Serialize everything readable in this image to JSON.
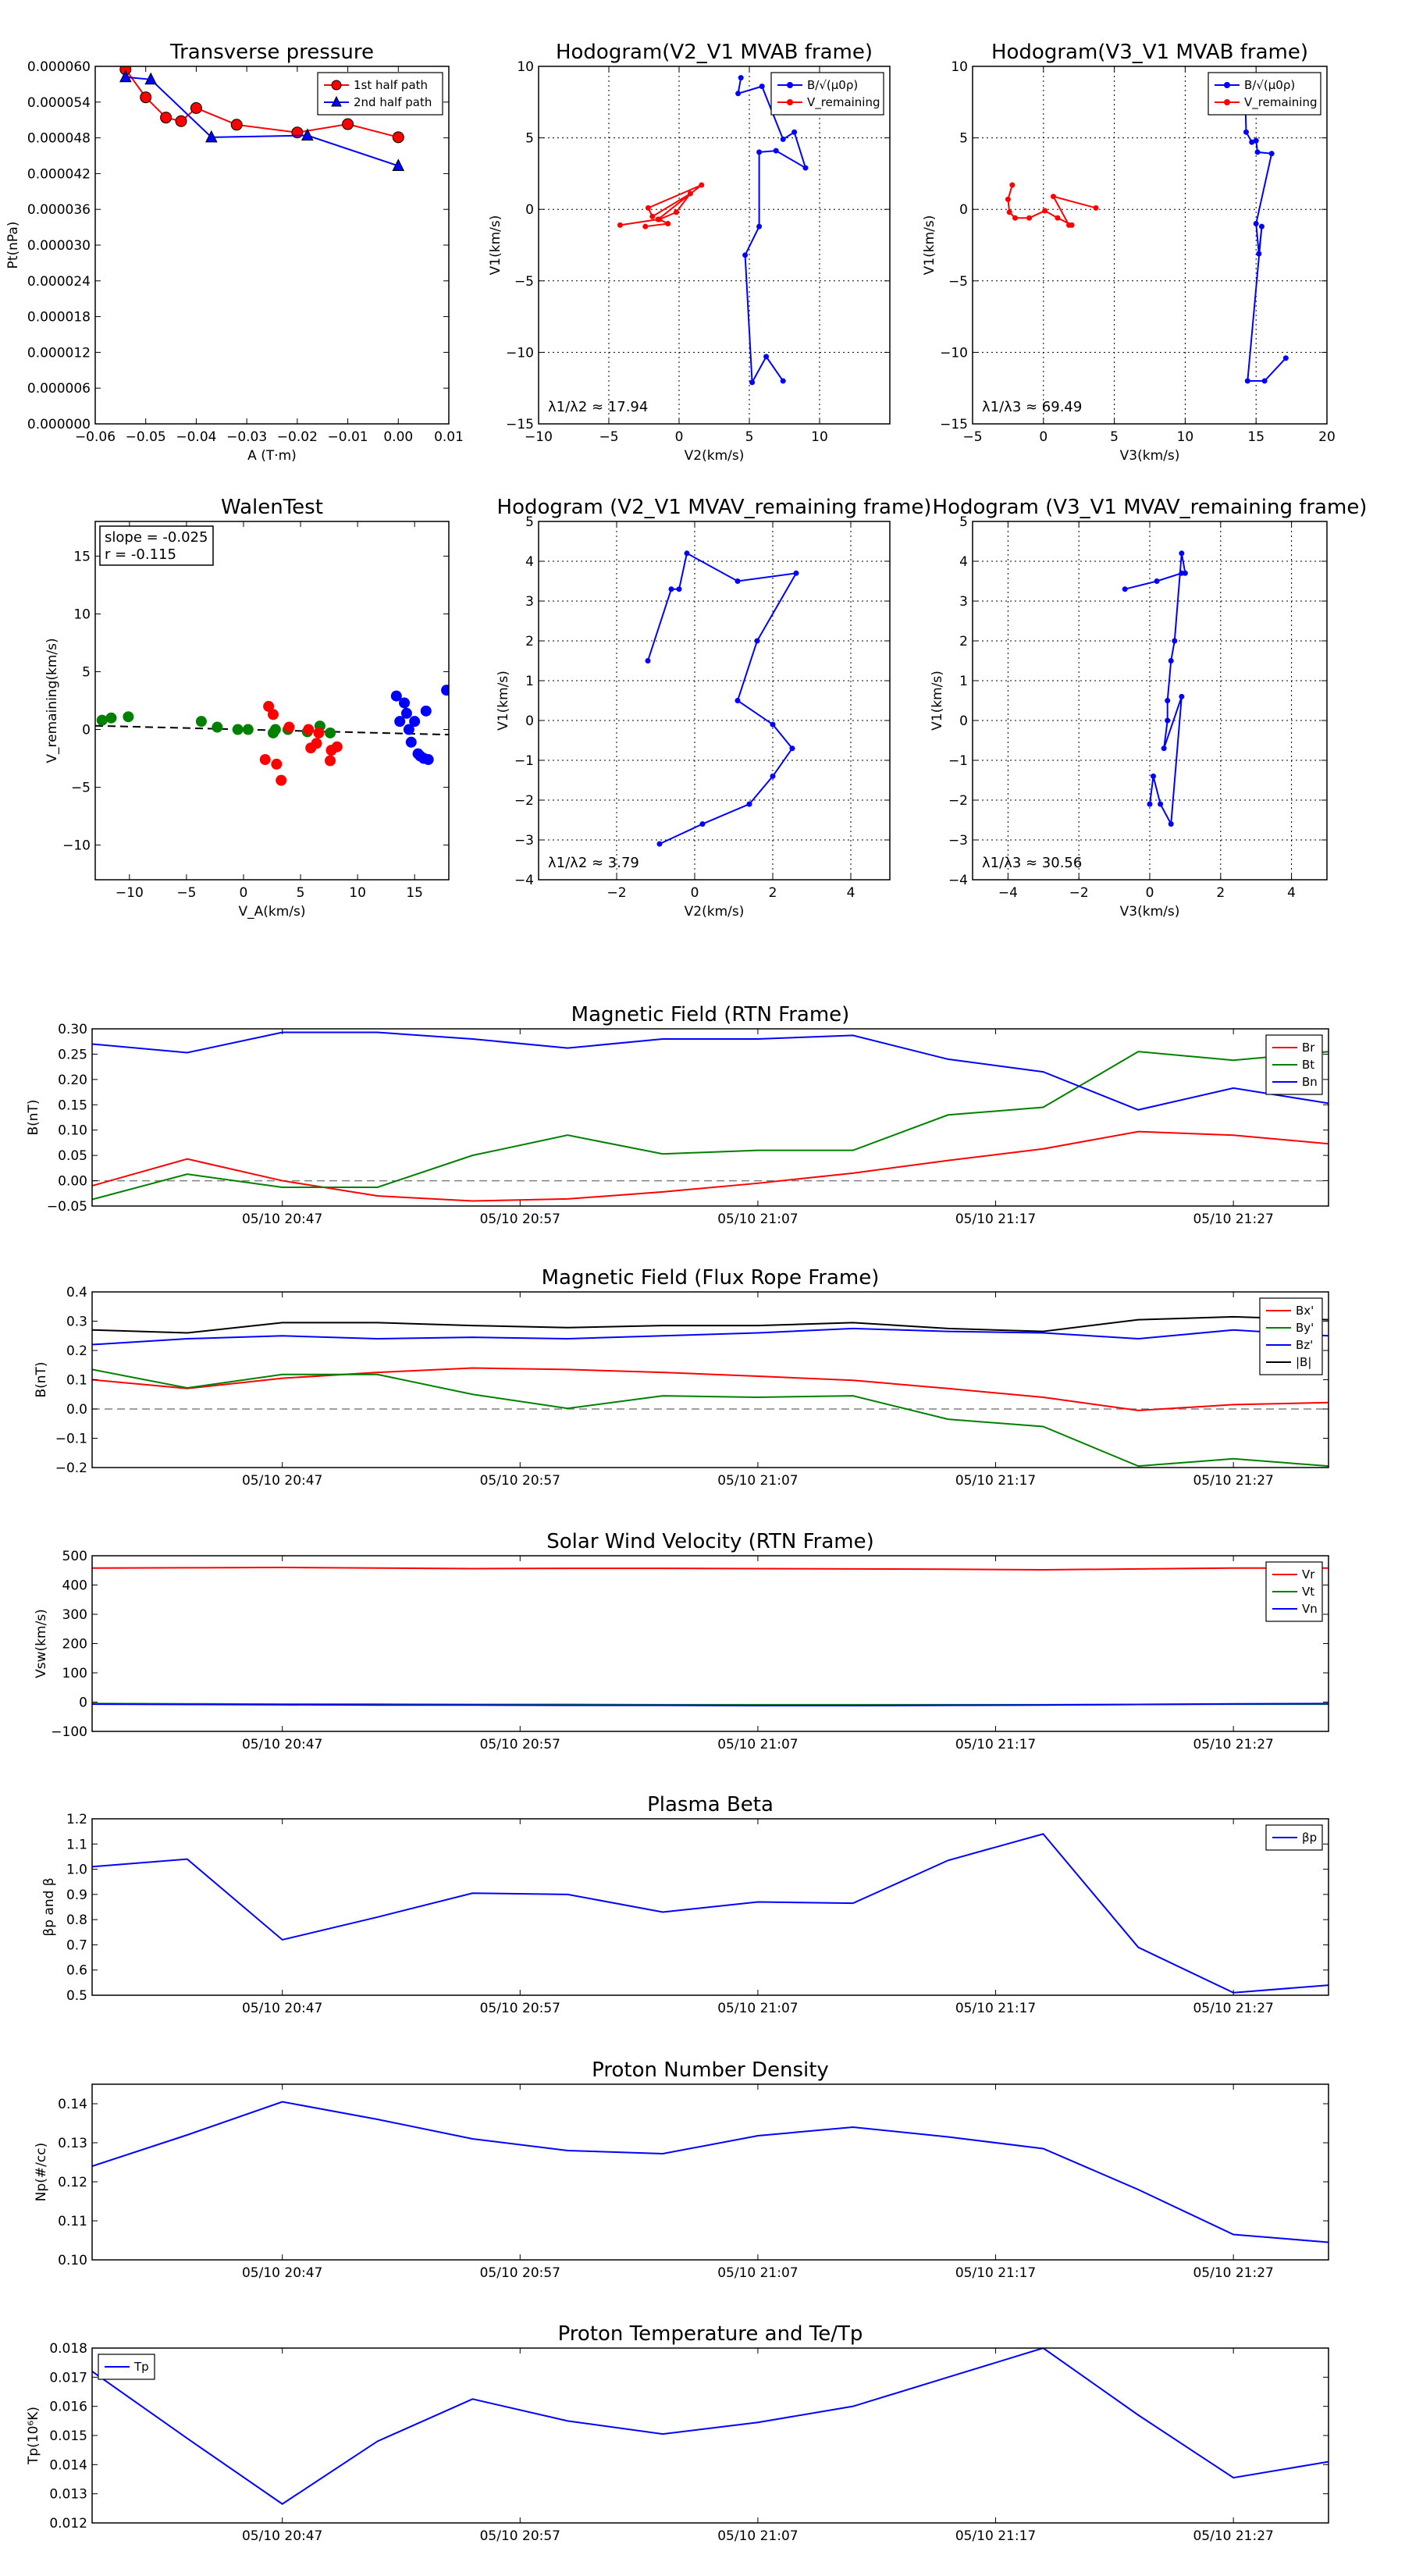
{
  "colors": {
    "red": "#ff0000",
    "green": "#008000",
    "blue": "#0000ff",
    "black": "#000000",
    "gray": "#808080"
  },
  "chart_data": [
    {
      "type": "line",
      "title": "Transverse pressure",
      "xlabel": "A (T·m)",
      "ylabel": "Pt(nPa)",
      "xlim": [
        -0.06,
        0.01
      ],
      "ylim": [
        0,
        6e-05
      ],
      "xticks": [
        "−0.06",
        "−0.05",
        "−0.04",
        "−0.03",
        "−0.02",
        "−0.01",
        "0.00",
        "0.01"
      ],
      "yticks": [
        "0.000000",
        "0.000006",
        "0.000012",
        "0.000018",
        "0.000024",
        "0.000030",
        "0.000036",
        "0.000042",
        "0.000048",
        "0.000054",
        "0.000060"
      ],
      "grid": false,
      "legend": "top-right",
      "series": [
        {
          "name": "1st half path",
          "color": "red",
          "marker": "circle",
          "x": [
            -0.054,
            -0.05,
            -0.046,
            -0.043,
            -0.04,
            -0.032,
            -0.02,
            -0.01,
            0.0
          ],
          "y": [
            5.95e-05,
            5.48e-05,
            5.14e-05,
            5.08e-05,
            5.3e-05,
            5.02e-05,
            4.89e-05,
            5.03e-05,
            4.81e-05
          ]
        },
        {
          "name": "2nd half path",
          "color": "blue",
          "marker": "triangle",
          "x": [
            -0.054,
            -0.049,
            -0.037,
            -0.018,
            0.0
          ],
          "y": [
            5.82e-05,
            5.78e-05,
            4.81e-05,
            4.84e-05,
            4.33e-05
          ]
        }
      ]
    },
    {
      "type": "line",
      "title": "Hodogram(V2_V1 MVAB frame)",
      "xlabel": "V2(km/s)",
      "ylabel": "V1(km/s)",
      "xlim": [
        -10,
        15
      ],
      "ylim": [
        -15,
        10
      ],
      "xticks": [
        "−10",
        "−5",
        "0",
        "5",
        "10"
      ],
      "yticks": [
        "−15",
        "−10",
        "−5",
        "0",
        "5",
        "10"
      ],
      "grid": true,
      "legend": "top-right",
      "annotation": "λ1/λ2 ≈ 17.94",
      "series": [
        {
          "name": "B/√(μ0ρ)",
          "color": "blue",
          "marker": "dot",
          "x": [
            4.4,
            4.2,
            5.9,
            7.4,
            8.2,
            9.0,
            6.9,
            5.7,
            5.7,
            4.7,
            5.2,
            6.2,
            7.4
          ],
          "y": [
            9.2,
            8.1,
            8.6,
            4.9,
            5.4,
            2.9,
            4.1,
            4.0,
            -1.2,
            -3.2,
            -12.1,
            -10.3,
            -12.0
          ]
        },
        {
          "name": "V_remaining",
          "color": "red",
          "marker": "dot",
          "x": [
            -4.2,
            -1.5,
            1.6,
            -2.2,
            -1.9,
            0.8,
            -0.2,
            -1.4,
            -0.8,
            -2.4
          ],
          "y": [
            -1.1,
            -0.7,
            1.7,
            0.1,
            -0.5,
            1.1,
            -0.2,
            -0.7,
            -1.0,
            -1.2
          ]
        }
      ]
    },
    {
      "type": "line",
      "title": "Hodogram(V3_V1 MVAB frame)",
      "xlabel": "V3(km/s)",
      "ylabel": "V1(km/s)",
      "xlim": [
        -5,
        20
      ],
      "ylim": [
        -15,
        10
      ],
      "xticks": [
        "−5",
        "0",
        "5",
        "10",
        "15",
        "20"
      ],
      "yticks": [
        "−15",
        "−10",
        "−5",
        "0",
        "5",
        "10"
      ],
      "grid": true,
      "legend": "top-right",
      "annotation": "λ1/λ3 ≈ 69.49",
      "series": [
        {
          "name": "B/√(μ0ρ)",
          "color": "blue",
          "marker": "dot",
          "x": [
            14.2,
            14.3,
            14.7,
            15.0,
            15.1,
            16.1,
            15.0,
            15.2,
            15.4,
            14.4,
            15.6,
            17.1
          ],
          "y": [
            9.0,
            5.4,
            4.7,
            4.8,
            4.0,
            3.9,
            -1.0,
            -3.1,
            -1.2,
            -12.0,
            -12.0,
            -10.4
          ]
        },
        {
          "name": "V_remaining",
          "color": "red",
          "marker": "dot",
          "x": [
            -2.2,
            -2.5,
            -2.4,
            -2.0,
            -1.0,
            0.1,
            1.0,
            2.0,
            1.8,
            0.7,
            3.7
          ],
          "y": [
            1.7,
            0.7,
            -0.2,
            -0.6,
            -0.6,
            -0.1,
            -0.6,
            -1.1,
            -1.1,
            0.9,
            0.1
          ]
        }
      ]
    },
    {
      "type": "scatter",
      "title": "WalenTest",
      "xlabel": "V_A(km/s)",
      "ylabel": "V_remaining(km/s)",
      "xlim": [
        -13,
        18
      ],
      "ylim": [
        -13,
        18
      ],
      "xticks": [
        "−10",
        "−5",
        "0",
        "5",
        "10",
        "15"
      ],
      "yticks": [
        "−10",
        "−5",
        "0",
        "5",
        "10",
        "15"
      ],
      "grid": false,
      "annotation": [
        "slope = -0.025",
        "r = -0.115"
      ],
      "fit_line": {
        "slope": -0.025,
        "intercept": 0.0
      },
      "series": [
        {
          "color": "green",
          "x": [
            -12.4,
            -11.6,
            -10.1,
            -3.7,
            -2.3,
            -0.5,
            0.4,
            2.6,
            2.8,
            3.9,
            5.6,
            6.7,
            7.6
          ],
          "y": [
            0.8,
            1.0,
            1.1,
            0.7,
            0.2,
            0.0,
            0.0,
            -0.3,
            0.0,
            0.0,
            -0.2,
            0.3,
            -0.3
          ]
        },
        {
          "color": "red",
          "x": [
            1.9,
            2.2,
            2.6,
            2.9,
            3.3,
            4.0,
            5.7,
            5.9,
            6.4,
            6.6,
            7.6,
            7.7,
            8.2
          ],
          "y": [
            -2.6,
            2.0,
            1.3,
            -3.0,
            -4.4,
            0.2,
            0.0,
            -1.6,
            -1.2,
            -0.3,
            -2.7,
            -1.8,
            -1.5
          ]
        },
        {
          "color": "blue",
          "x": [
            13.4,
            13.7,
            14.1,
            14.3,
            14.5,
            14.7,
            15.0,
            15.3,
            15.5,
            15.8,
            16.0,
            16.2,
            17.8
          ],
          "y": [
            2.9,
            0.7,
            2.3,
            1.4,
            0.0,
            -1.1,
            0.7,
            -2.1,
            -2.3,
            -2.5,
            1.6,
            -2.6,
            3.4
          ]
        }
      ]
    },
    {
      "type": "line",
      "title": "Hodogram (V2_V1 MVAV_remaining frame)",
      "xlabel": "V2(km/s)",
      "ylabel": "V1(km/s)",
      "xlim": [
        -4,
        5
      ],
      "ylim": [
        -4,
        5
      ],
      "xticks": [
        "−2",
        "0",
        "2",
        "4"
      ],
      "yticks": [
        "−4",
        "−3",
        "−2",
        "−1",
        "0",
        "1",
        "2",
        "3",
        "4",
        "5"
      ],
      "grid": true,
      "annotation": "λ1/λ2 ≈ 3.79",
      "series": [
        {
          "color": "blue",
          "marker": "dot",
          "x": [
            -1.2,
            -0.6,
            -0.4,
            -0.2,
            1.1,
            2.6,
            1.6,
            1.1,
            2.0,
            2.5,
            2.0,
            1.4,
            0.2,
            -0.9
          ],
          "y": [
            1.5,
            3.3,
            3.3,
            4.2,
            3.5,
            3.7,
            2.0,
            0.5,
            -0.1,
            -0.7,
            -1.4,
            -2.1,
            -2.6,
            -3.1
          ]
        }
      ]
    },
    {
      "type": "line",
      "title": "Hodogram (V3_V1 MVAV_remaining frame)",
      "xlabel": "V3(km/s)",
      "ylabel": "V1(km/s)",
      "xlim": [
        -5,
        5
      ],
      "ylim": [
        -4,
        5
      ],
      "xticks": [
        "−4",
        "−2",
        "0",
        "2",
        "4"
      ],
      "yticks": [
        "−4",
        "−3",
        "−2",
        "−1",
        "0",
        "1",
        "2",
        "3",
        "4",
        "5"
      ],
      "grid": true,
      "annotation": "λ1/λ3 ≈ 30.56",
      "series": [
        {
          "color": "blue",
          "marker": "dot",
          "x": [
            -0.7,
            0.2,
            0.9,
            1.0,
            0.9,
            0.7,
            0.6,
            0.5,
            0.5,
            0.4,
            0.9,
            0.6,
            0.3,
            0.1,
            0.0
          ],
          "y": [
            3.3,
            3.5,
            3.7,
            3.7,
            4.2,
            2.0,
            1.5,
            0.5,
            0.0,
            -0.7,
            0.6,
            -2.6,
            -2.1,
            -1.4,
            -2.1
          ]
        }
      ]
    },
    {
      "type": "line",
      "title": "Magnetic Field (RTN Frame)",
      "xlabel": "",
      "ylabel": "B(nT)",
      "xlim": [
        0,
        52
      ],
      "ylim": [
        -0.05,
        0.3
      ],
      "xticks": [
        "05/10 20:47",
        "05/10 20:57",
        "05/10 21:07",
        "05/10 21:17",
        "05/10 21:27"
      ],
      "xtick_pos": [
        8,
        18,
        28,
        38,
        48
      ],
      "yticks": [
        "−0.05",
        "0.00",
        "0.05",
        "0.10",
        "0.15",
        "0.20",
        "0.25",
        "0.30"
      ],
      "grid": false,
      "zero_line": true,
      "legend": "top-right",
      "x": [
        0,
        4,
        8,
        12,
        16,
        20,
        24,
        28,
        32,
        36,
        40,
        44,
        48,
        52
      ],
      "series": [
        {
          "name": "Br",
          "color": "red",
          "values": [
            -0.01,
            0.043,
            0.0,
            -0.03,
            -0.04,
            -0.036,
            -0.022,
            -0.005,
            0.015,
            0.04,
            0.063,
            0.097,
            0.09,
            0.073
          ]
        },
        {
          "name": "Bt",
          "color": "green",
          "values": [
            -0.037,
            0.013,
            -0.013,
            -0.013,
            0.05,
            0.09,
            0.053,
            0.06,
            0.06,
            0.13,
            0.145,
            0.255,
            0.238,
            0.255
          ]
        },
        {
          "name": "Bn",
          "color": "blue",
          "values": [
            0.27,
            0.253,
            0.293,
            0.293,
            0.28,
            0.262,
            0.28,
            0.28,
            0.287,
            0.24,
            0.215,
            0.14,
            0.183,
            0.153
          ]
        }
      ]
    },
    {
      "type": "line",
      "title": "Magnetic Field (Flux Rope Frame)",
      "xlabel": "",
      "ylabel": "B(nT)",
      "xlim": [
        0,
        52
      ],
      "ylim": [
        -0.2,
        0.4
      ],
      "xticks": [
        "05/10 20:47",
        "05/10 20:57",
        "05/10 21:07",
        "05/10 21:17",
        "05/10 21:27"
      ],
      "xtick_pos": [
        8,
        18,
        28,
        38,
        48
      ],
      "yticks": [
        "−0.2",
        "−0.1",
        "0.0",
        "0.1",
        "0.2",
        "0.3",
        "0.4"
      ],
      "grid": false,
      "zero_line": true,
      "legend": "top-right",
      "x": [
        0,
        4,
        8,
        12,
        16,
        20,
        24,
        28,
        32,
        36,
        40,
        44,
        48,
        52
      ],
      "series": [
        {
          "name": "Bx'",
          "color": "red",
          "values": [
            0.1,
            0.07,
            0.105,
            0.125,
            0.14,
            0.135,
            0.125,
            0.112,
            0.098,
            0.07,
            0.04,
            -0.005,
            0.015,
            0.022
          ]
        },
        {
          "name": "By'",
          "color": "green",
          "values": [
            0.135,
            0.072,
            0.118,
            0.118,
            0.05,
            0.002,
            0.045,
            0.04,
            0.045,
            -0.035,
            -0.06,
            -0.195,
            -0.17,
            -0.195
          ]
        },
        {
          "name": "Bz'",
          "color": "blue",
          "values": [
            0.22,
            0.24,
            0.25,
            0.24,
            0.245,
            0.24,
            0.25,
            0.26,
            0.275,
            0.265,
            0.26,
            0.24,
            0.27,
            0.25
          ]
        },
        {
          "name": "|B|",
          "color": "black",
          "values": [
            0.27,
            0.26,
            0.295,
            0.295,
            0.285,
            0.278,
            0.285,
            0.285,
            0.295,
            0.275,
            0.265,
            0.305,
            0.315,
            0.305
          ]
        }
      ]
    },
    {
      "type": "line",
      "title": "Solar Wind Velocity (RTN Frame)",
      "xlabel": "",
      "ylabel": "Vsw(km/s)",
      "xlim": [
        0,
        52
      ],
      "ylim": [
        -100,
        500
      ],
      "xticks": [
        "05/10 20:47",
        "05/10 20:57",
        "05/10 21:07",
        "05/10 21:17",
        "05/10 21:27"
      ],
      "xtick_pos": [
        8,
        18,
        28,
        38,
        48
      ],
      "yticks": [
        "−100",
        "0",
        "100",
        "200",
        "300",
        "400",
        "500"
      ],
      "grid": false,
      "legend": "top-right",
      "x": [
        0,
        4,
        8,
        12,
        16,
        20,
        24,
        28,
        32,
        36,
        40,
        44,
        48,
        52
      ],
      "series": [
        {
          "name": "Vr",
          "color": "red",
          "values": [
            458,
            459,
            460,
            458,
            456,
            457,
            457,
            456,
            455,
            454,
            452,
            455,
            458,
            458
          ]
        },
        {
          "name": "Vt",
          "color": "green",
          "values": [
            -5,
            -6,
            -7,
            -7,
            -8,
            -8,
            -9,
            -9,
            -9,
            -9,
            -9,
            -8,
            -7,
            -7
          ]
        },
        {
          "name": "Vn",
          "color": "blue",
          "values": [
            -7,
            -8,
            -9,
            -10,
            -10,
            -11,
            -11,
            -12,
            -12,
            -11,
            -10,
            -8,
            -6,
            -5
          ]
        }
      ]
    },
    {
      "type": "line",
      "title": "Plasma Beta",
      "xlabel": "",
      "ylabel": "βp and β",
      "xlim": [
        0,
        52
      ],
      "ylim": [
        0.5,
        1.2
      ],
      "xticks": [
        "05/10 20:47",
        "05/10 20:57",
        "05/10 21:07",
        "05/10 21:17",
        "05/10 21:27"
      ],
      "xtick_pos": [
        8,
        18,
        28,
        38,
        48
      ],
      "yticks": [
        "0.5",
        "0.6",
        "0.7",
        "0.8",
        "0.9",
        "1.0",
        "1.1",
        "1.2"
      ],
      "grid": false,
      "legend": "top-right",
      "x": [
        0,
        4,
        8,
        12,
        16,
        20,
        24,
        28,
        32,
        36,
        40,
        44,
        48,
        52
      ],
      "series": [
        {
          "name": "βp",
          "color": "blue",
          "values": [
            1.01,
            1.04,
            0.72,
            0.81,
            0.905,
            0.9,
            0.83,
            0.87,
            0.865,
            1.035,
            1.14,
            0.69,
            0.51,
            0.54
          ]
        }
      ]
    },
    {
      "type": "line",
      "title": "Proton Number Density",
      "xlabel": "",
      "ylabel": "Np(#/cc)",
      "xlim": [
        0,
        52
      ],
      "ylim": [
        0.1,
        0.145
      ],
      "xticks": [
        "05/10 20:47",
        "05/10 20:57",
        "05/10 21:07",
        "05/10 21:17",
        "05/10 21:27"
      ],
      "xtick_pos": [
        8,
        18,
        28,
        38,
        48
      ],
      "yticks": [
        "0.10",
        "0.11",
        "0.12",
        "0.13",
        "0.14"
      ],
      "grid": false,
      "x": [
        0,
        4,
        8,
        12,
        16,
        20,
        24,
        28,
        32,
        36,
        40,
        44,
        48,
        52
      ],
      "series": [
        {
          "color": "blue",
          "values": [
            0.124,
            0.132,
            0.1405,
            0.136,
            0.131,
            0.128,
            0.1272,
            0.1318,
            0.134,
            0.1315,
            0.1285,
            0.118,
            0.1065,
            0.1045
          ]
        }
      ]
    },
    {
      "type": "line",
      "title": "Proton Temperature and Te/Tp",
      "xlabel": "",
      "ylabel": "Tp(10⁶K)",
      "xlim": [
        0,
        52
      ],
      "ylim": [
        0.012,
        0.018
      ],
      "xticks": [
        "05/10 20:47",
        "05/10 20:57",
        "05/10 21:07",
        "05/10 21:17",
        "05/10 21:27"
      ],
      "xtick_pos": [
        8,
        18,
        28,
        38,
        48
      ],
      "yticks": [
        "0.012",
        "0.013",
        "0.014",
        "0.015",
        "0.016",
        "0.017",
        "0.018"
      ],
      "grid": false,
      "legend": "top-left",
      "x": [
        0,
        4,
        8,
        12,
        16,
        20,
        24,
        28,
        32,
        36,
        40,
        44,
        48,
        52
      ],
      "series": [
        {
          "name": "Tp",
          "color": "blue",
          "values": [
            0.0172,
            0.0149,
            0.01265,
            0.0148,
            0.01625,
            0.0155,
            0.01505,
            0.01545,
            0.016,
            0.017,
            0.018,
            0.0157,
            0.01355,
            0.0141
          ]
        }
      ]
    }
  ]
}
